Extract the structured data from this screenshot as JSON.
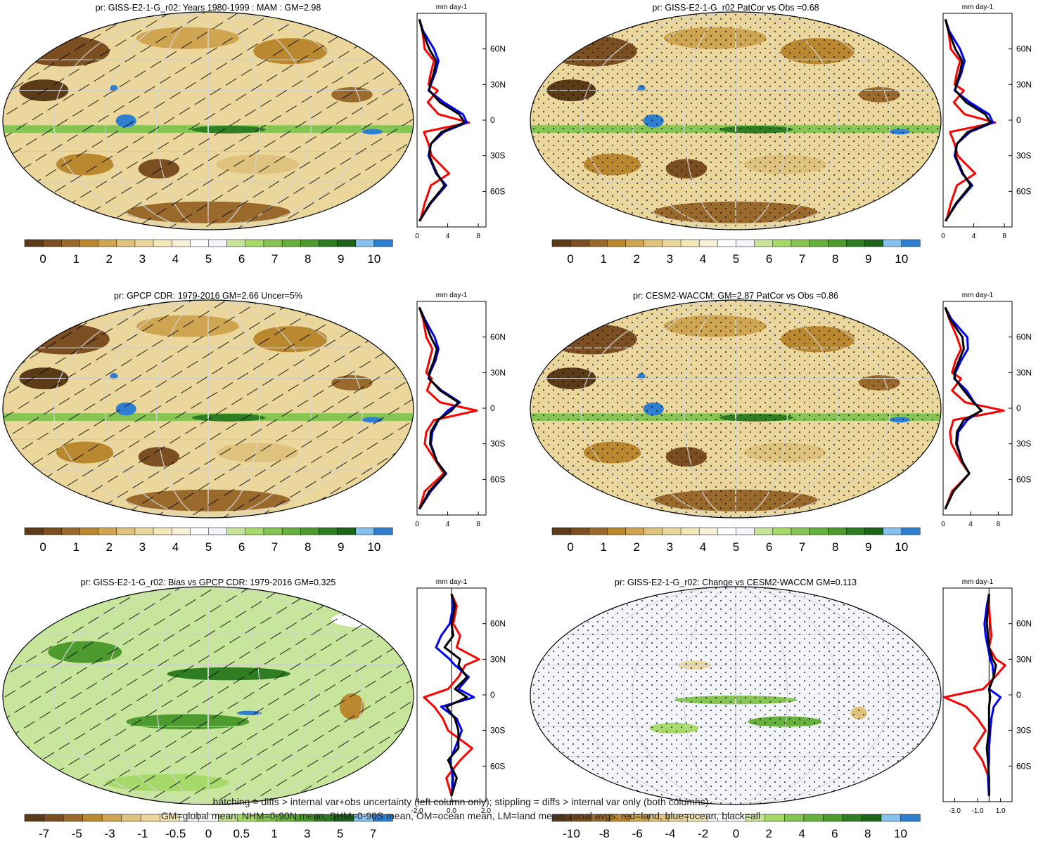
{
  "palette": {
    "precip": [
      "#5c3b18",
      "#7b4f21",
      "#9a6a2c",
      "#b9882f",
      "#cfa552",
      "#dfc27d",
      "#ebd69b",
      "#f3e6b7",
      "#f8f0d6",
      "#ffffff",
      "#f4f5fb",
      "#c7e69b",
      "#a6d96a",
      "#86c453",
      "#66b03d",
      "#4d9a2e",
      "#2f7d22",
      "#1f6219",
      "#87c2ee",
      "#2e7fd0"
    ],
    "bias": [
      "#5c3b18",
      "#7b4f21",
      "#9a6a2c",
      "#b9882f",
      "#cfa552",
      "#dfc27d",
      "#ebd69b",
      "#f3e6b7",
      "#ffffff",
      "#ffffff",
      "#c7e69b",
      "#a6d96a",
      "#86c453",
      "#66b03d",
      "#4d9a2e",
      "#2f7d22",
      "#1f6219",
      "#87c2ee",
      "#2e7fd0"
    ],
    "zonal_land": "#ff0000",
    "zonal_ocean": "#0000ff",
    "zonal_all": "#000000"
  },
  "panels": [
    {
      "title": "pr: GISS-E2-1-G_r02: Years 1980-1999 : MAM : GM=2.98",
      "overlay": "hatch",
      "field": "clim",
      "colorbar": {
        "labels": [
          "0",
          "1",
          "2",
          "3",
          "4",
          "5",
          "6",
          "7",
          "8",
          "9",
          "10"
        ],
        "palette": "precip"
      },
      "zonal": {
        "unit": "mm day-1",
        "xticks": [
          "0",
          "4",
          "8"
        ],
        "xlim": [
          0,
          9
        ],
        "lat_labels": [
          "60N",
          "30N",
          "0",
          "30S",
          "60S"
        ]
      }
    },
    {
      "title": "pr: GISS-E2-1-G_r02 PatCor vs Obs =0.68",
      "overlay": "stipple",
      "field": "clim",
      "colorbar": {
        "labels": [
          "0",
          "1",
          "2",
          "3",
          "4",
          "5",
          "6",
          "7",
          "8",
          "9",
          "10"
        ],
        "palette": "precip"
      },
      "zonal": {
        "unit": "mm day-1",
        "xticks": [
          "0",
          "4",
          "8"
        ],
        "xlim": [
          0,
          9
        ],
        "lat_labels": [
          "60N",
          "30N",
          "0",
          "30S",
          "60S"
        ]
      }
    },
    {
      "title": "pr: GPCP CDR: 1979-2016 GM=2.66 Uncer=5%",
      "overlay": "hatch",
      "field": "clim",
      "colorbar": {
        "labels": [
          "0",
          "1",
          "2",
          "3",
          "4",
          "5",
          "6",
          "7",
          "8",
          "9",
          "10"
        ],
        "palette": "precip"
      },
      "zonal": {
        "unit": "mm day-1",
        "xticks": [
          "0",
          "4",
          "8"
        ],
        "xlim": [
          0,
          9
        ],
        "lat_labels": [
          "60N",
          "30N",
          "0",
          "30S",
          "60S"
        ]
      }
    },
    {
      "title": "pr: CESM2-WACCM: GM=2.87 PatCor vs Obs =0.86",
      "overlay": "stipple",
      "field": "clim",
      "colorbar": {
        "labels": [
          "0",
          "1",
          "2",
          "3",
          "4",
          "5",
          "6",
          "7",
          "8",
          "9",
          "10"
        ],
        "palette": "precip"
      },
      "zonal": {
        "unit": "mm day-1",
        "xticks": [
          "0",
          "4",
          "8"
        ],
        "xlim": [
          0,
          10
        ],
        "lat_labels": [
          "60N",
          "30N",
          "0",
          "30S",
          "60S"
        ]
      }
    },
    {
      "title": "pr: GISS-E2-1-G_r02: Bias vs GPCP CDR: 1979-2016 GM=0.325",
      "overlay": "hatch",
      "field": "diff",
      "colorbar": {
        "labels": [
          "-7",
          "-5",
          "-3",
          "-1",
          "-0.5",
          "0",
          "0.5",
          "1",
          "3",
          "5",
          "7"
        ],
        "palette": "bias"
      },
      "zonal": {
        "unit": "mm day-1",
        "xticks": [
          "-2.0",
          "0.0",
          "2.0"
        ],
        "xlim": [
          -2,
          2
        ],
        "lat_labels": [
          "60N",
          "30N",
          "0",
          "30S",
          "60S"
        ]
      }
    },
    {
      "title": "pr: GISS-E2-1-G_r02: Change vs CESM2-WACCM GM=0.113",
      "overlay": "stipple",
      "field": "change",
      "colorbar": {
        "labels": [
          "-10",
          "-8",
          "-6",
          "-4",
          "-2",
          "0",
          "2",
          "4",
          "6",
          "8",
          "10"
        ],
        "palette": "bias"
      },
      "zonal": {
        "unit": "mm day-1",
        "xticks": [
          "-3.0",
          "-1.0",
          "1.0"
        ],
        "xlim": [
          -4,
          2
        ],
        "lat_labels": [
          "60N",
          "30N",
          "0",
          "30S",
          "60S"
        ]
      }
    }
  ],
  "chart_data": [
    {
      "type": "line",
      "title": "",
      "xlabel": "mm day-1",
      "ylabel": "",
      "xlim": [
        0,
        9
      ],
      "ylim": [
        -90,
        90
      ],
      "x_ticks": [
        "0",
        "4",
        "8"
      ],
      "series": [
        {
          "name": "land",
          "x": [
            0.3,
            0.7,
            1.0,
            2.2,
            1.8,
            1.5,
            2.7,
            1.4,
            2.8,
            6.8,
            0.9,
            1.5,
            1.9,
            4.2,
            1.8,
            1.0,
            0.4
          ],
          "y": [
            85,
            75,
            60,
            50,
            40,
            30,
            25,
            15,
            5,
            -2,
            -10,
            -20,
            -30,
            -45,
            -55,
            -70,
            -85
          ]
        },
        {
          "name": "ocean",
          "x": [
            0.3,
            0.8,
            2.2,
            2.8,
            2.4,
            1.8,
            1.5,
            3.5,
            6.0,
            6.5,
            3.5,
            1.8,
            1.5,
            2.5,
            3.8,
            1.8,
            0.3
          ],
          "y": [
            85,
            75,
            60,
            50,
            40,
            30,
            25,
            15,
            5,
            -2,
            -10,
            -20,
            -30,
            -45,
            -55,
            -70,
            -85
          ]
        },
        {
          "name": "all",
          "x": [
            0.3,
            0.7,
            1.6,
            2.5,
            2.2,
            1.7,
            1.6,
            3.0,
            5.5,
            6.2,
            3.2,
            1.8,
            1.6,
            2.6,
            3.6,
            1.7,
            0.3
          ],
          "y": [
            85,
            75,
            60,
            50,
            40,
            30,
            25,
            15,
            5,
            -2,
            -10,
            -20,
            -30,
            -45,
            -55,
            -70,
            -85
          ]
        }
      ]
    },
    {
      "type": "line",
      "title": "",
      "xlabel": "mm day-1",
      "ylabel": "",
      "xlim": [
        0,
        9
      ],
      "ylim": [
        -90,
        90
      ],
      "x_ticks": [
        "0",
        "4",
        "8"
      ],
      "series": [
        {
          "name": "land",
          "x": [
            0.3,
            0.7,
            1.0,
            2.2,
            1.8,
            1.5,
            2.7,
            1.4,
            2.8,
            6.8,
            0.9,
            1.5,
            1.9,
            4.2,
            1.8,
            1.0,
            0.4
          ],
          "y": [
            85,
            75,
            60,
            50,
            40,
            30,
            25,
            15,
            5,
            -2,
            -10,
            -20,
            -30,
            -45,
            -55,
            -70,
            -85
          ]
        },
        {
          "name": "ocean",
          "x": [
            0.3,
            0.8,
            2.2,
            2.8,
            2.4,
            1.8,
            1.5,
            3.5,
            6.0,
            6.5,
            3.5,
            1.8,
            1.5,
            2.5,
            3.8,
            1.8,
            0.3
          ],
          "y": [
            85,
            75,
            60,
            50,
            40,
            30,
            25,
            15,
            5,
            -2,
            -10,
            -20,
            -30,
            -45,
            -55,
            -70,
            -85
          ]
        },
        {
          "name": "all",
          "x": [
            0.3,
            0.7,
            1.6,
            2.5,
            2.2,
            1.7,
            1.6,
            3.0,
            5.5,
            6.2,
            3.2,
            1.8,
            1.6,
            2.6,
            3.6,
            1.7,
            0.3
          ],
          "y": [
            85,
            75,
            60,
            50,
            40,
            30,
            25,
            15,
            5,
            -2,
            -10,
            -20,
            -30,
            -45,
            -55,
            -70,
            -85
          ]
        }
      ]
    },
    {
      "type": "line",
      "title": "",
      "xlabel": "mm day-1",
      "ylabel": "",
      "xlim": [
        0,
        9
      ],
      "ylim": [
        -90,
        90
      ],
      "x_ticks": [
        "0",
        "4",
        "8"
      ],
      "series": [
        {
          "name": "land",
          "x": [
            0.3,
            0.8,
            1.2,
            2.0,
            1.6,
            1.2,
            1.9,
            1.3,
            3.0,
            7.8,
            2.2,
            1.2,
            1.0,
            2.5,
            3.5,
            1.0,
            0.3
          ],
          "y": [
            85,
            75,
            60,
            50,
            40,
            30,
            25,
            15,
            5,
            -2,
            -10,
            -20,
            -30,
            -45,
            -55,
            -70,
            -85
          ]
        },
        {
          "name": "ocean",
          "x": [
            0.3,
            1.0,
            2.3,
            2.8,
            2.4,
            1.7,
            1.5,
            3.2,
            5.6,
            4.0,
            2.8,
            2.0,
            1.8,
            2.6,
            3.8,
            1.8,
            0.3
          ],
          "y": [
            85,
            75,
            60,
            50,
            40,
            30,
            25,
            15,
            5,
            -2,
            -10,
            -20,
            -30,
            -45,
            -55,
            -70,
            -85
          ]
        },
        {
          "name": "all",
          "x": [
            0.3,
            0.9,
            1.8,
            2.6,
            2.2,
            1.6,
            1.6,
            3.0,
            5.4,
            4.5,
            2.7,
            1.8,
            1.7,
            2.6,
            3.7,
            1.6,
            0.3
          ],
          "y": [
            85,
            75,
            60,
            50,
            40,
            30,
            25,
            15,
            5,
            -2,
            -10,
            -20,
            -30,
            -45,
            -55,
            -70,
            -85
          ]
        }
      ]
    },
    {
      "type": "line",
      "title": "",
      "xlabel": "mm day-1",
      "ylabel": "",
      "xlim": [
        0,
        10
      ],
      "ylim": [
        -90,
        90
      ],
      "x_ticks": [
        "0",
        "4",
        "8"
      ],
      "series": [
        {
          "name": "land",
          "x": [
            0.3,
            0.9,
            2.0,
            2.6,
            1.8,
            1.3,
            2.6,
            1.3,
            3.2,
            8.8,
            1.5,
            1.0,
            1.2,
            2.6,
            3.8,
            1.3,
            0.3
          ],
          "y": [
            85,
            75,
            60,
            50,
            40,
            30,
            25,
            15,
            5,
            -2,
            -10,
            -20,
            -30,
            -45,
            -55,
            -70,
            -85
          ]
        },
        {
          "name": "ocean",
          "x": [
            0.3,
            1.2,
            3.5,
            3.6,
            2.6,
            1.8,
            1.6,
            3.4,
            4.5,
            5.5,
            3.5,
            2.2,
            2.0,
            2.8,
            3.8,
            1.5,
            0.3
          ],
          "y": [
            85,
            75,
            60,
            50,
            40,
            30,
            25,
            15,
            5,
            -2,
            -10,
            -20,
            -30,
            -45,
            -55,
            -70,
            -85
          ]
        },
        {
          "name": "all",
          "x": [
            0.3,
            1.0,
            2.8,
            3.0,
            2.3,
            1.6,
            1.7,
            3.0,
            4.4,
            5.6,
            3.0,
            2.0,
            1.9,
            2.8,
            3.8,
            1.5,
            0.3
          ],
          "y": [
            85,
            75,
            60,
            50,
            40,
            30,
            25,
            15,
            5,
            -2,
            -10,
            -20,
            -30,
            -45,
            -55,
            -70,
            -85
          ]
        }
      ]
    },
    {
      "type": "line",
      "title": "",
      "xlabel": "mm day-1",
      "ylabel": "",
      "xlim": [
        -2,
        2
      ],
      "ylim": [
        -90,
        90
      ],
      "x_ticks": [
        "-2.0",
        "0.0",
        "2.0"
      ],
      "series": [
        {
          "name": "land",
          "x": [
            0.0,
            0.3,
            0.1,
            0.5,
            0.3,
            1.6,
            0.8,
            0.4,
            -0.2,
            -1.6,
            -1.0,
            -0.5,
            -0.2,
            1.2,
            0.5,
            -0.3,
            0.0
          ],
          "y": [
            85,
            75,
            60,
            50,
            40,
            30,
            25,
            15,
            5,
            -2,
            -10,
            -20,
            -30,
            -45,
            -55,
            -70,
            -85
          ]
        },
        {
          "name": "ocean",
          "x": [
            0.0,
            0.1,
            -0.1,
            -0.6,
            -0.9,
            -0.1,
            0.2,
            1.0,
            0.4,
            1.3,
            -0.6,
            0.3,
            0.6,
            0.2,
            -0.1,
            0.1,
            0.0
          ],
          "y": [
            85,
            75,
            60,
            50,
            40,
            30,
            25,
            15,
            5,
            -2,
            -10,
            -20,
            -30,
            -45,
            -55,
            -70,
            -85
          ]
        },
        {
          "name": "all",
          "x": [
            0.0,
            0.2,
            0.0,
            0.1,
            -0.4,
            0.5,
            0.4,
            0.9,
            0.2,
            0.9,
            -0.3,
            0.2,
            0.4,
            0.4,
            -0.2,
            0.3,
            0.0
          ],
          "y": [
            85,
            75,
            60,
            50,
            40,
            30,
            25,
            15,
            5,
            -2,
            -10,
            -20,
            -30,
            -45,
            -55,
            -70,
            -85
          ]
        }
      ]
    },
    {
      "type": "line",
      "title": "",
      "xlabel": "mm day-1",
      "ylabel": "",
      "xlim": [
        -4,
        2
      ],
      "ylim": [
        -90,
        90
      ],
      "x_ticks": [
        "-3.0",
        "-1.0",
        "1.0"
      ],
      "series": [
        {
          "name": "land",
          "x": [
            0.0,
            0.0,
            0.1,
            0.2,
            0.0,
            0.6,
            1.4,
            0.5,
            -0.5,
            -3.9,
            -2.0,
            -1.0,
            -0.3,
            -1.3,
            -0.6,
            0.0,
            0.0
          ],
          "y": [
            85,
            75,
            60,
            50,
            40,
            30,
            25,
            15,
            5,
            -2,
            -10,
            -20,
            -30,
            -45,
            -55,
            -70,
            -85
          ]
        },
        {
          "name": "ocean",
          "x": [
            0.0,
            -0.2,
            -0.4,
            -0.3,
            -0.1,
            0.1,
            0.3,
            0.4,
            0.0,
            1.0,
            0.4,
            0.2,
            0.1,
            0.0,
            0.0,
            -0.1,
            0.0
          ],
          "y": [
            85,
            75,
            60,
            50,
            40,
            30,
            25,
            15,
            5,
            -2,
            -10,
            -20,
            -30,
            -45,
            -55,
            -70,
            -85
          ]
        },
        {
          "name": "all",
          "x": [
            0.0,
            -0.1,
            -0.2,
            -0.1,
            0.0,
            0.3,
            0.6,
            0.4,
            0.0,
            0.1,
            0.0,
            0.0,
            0.0,
            -0.2,
            -0.1,
            0.0,
            0.0
          ],
          "y": [
            85,
            75,
            60,
            50,
            40,
            30,
            25,
            15,
            5,
            -2,
            -10,
            -20,
            -30,
            -45,
            -55,
            -70,
            -85
          ]
        }
      ]
    }
  ],
  "footnote": {
    "line1": "hatching = diffs > internal var+obs uncertainty (left column only); stippling = diffs > internal var only (both columns)",
    "line2": "GM=global mean, NHM=0-90N mean, SHM=0-90S mean, OM=ocean mean, LM=land mean; zonal avgs: red=land, blue=ocean, black=all"
  }
}
